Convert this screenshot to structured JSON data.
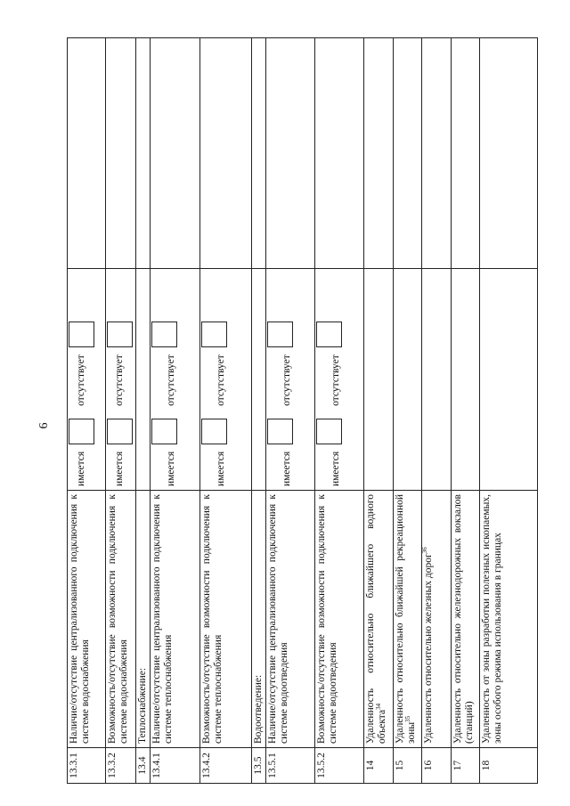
{
  "page_number": "6",
  "option_yes": "имеется",
  "option_no": "отсутствует",
  "rows": [
    {
      "num": "13.3.1",
      "text": "Наличие/отсутствие централизованного подключения к системе водоснабжения",
      "options": true
    },
    {
      "num": "13.3.2",
      "text": "Возможность/отсутствие возможности подключения к системе водоснабжения",
      "options": true
    },
    {
      "num": "13.4",
      "text": "Теплоснабжение:",
      "options": false
    },
    {
      "num": "13.4.1",
      "text": "Наличие/отсутствие централизованного подключения к системе теплоснабжения",
      "options": true
    },
    {
      "num": "13.4.2",
      "text": "Возможность/отсутствие возможности подключения к системе теплоснабжения",
      "options": true
    },
    {
      "num": "13.5",
      "text": "Водоотведение:",
      "options": false
    },
    {
      "num": "13.5.1",
      "text": "Наличие/отсутствие централизованного подключения к системе водоотведения",
      "options": true
    },
    {
      "num": "13.5.2",
      "text": "Возможность/отсутствие возможности подключения к системе водоотведения",
      "options": true
    },
    {
      "num": "14",
      "text": "Удаленность относительно ближайшего водного объекта",
      "sup": "34",
      "options": false
    },
    {
      "num": "15",
      "text": "Удаленность относительно ближайшей рекреационной зоны",
      "sup": "35",
      "options": false
    },
    {
      "num": "16",
      "text": "Удаленность относительно железных дорог",
      "sup": "36",
      "options": false
    },
    {
      "num": "17",
      "text": "Удаленность относительно железнодорожных вокзалов (станций)",
      "options": false
    },
    {
      "num": "18",
      "text": "Удаленность от зоны разработки полезных ископаемых, зоны особого режима использования в границах",
      "options": false
    }
  ]
}
